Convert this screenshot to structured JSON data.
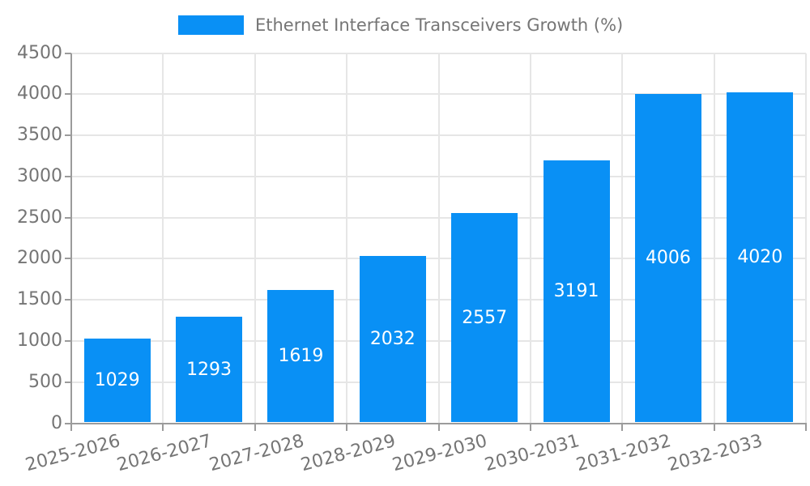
{
  "legend": {
    "label": "Ethernet Interface Transceivers Growth (%)"
  },
  "chart_data": {
    "type": "bar",
    "title": "Ethernet Interface Transceivers Growth (%)",
    "xlabel": "",
    "ylabel": "",
    "categories": [
      "2025-2026",
      "2026-2027",
      "2027-2028",
      "2028-2029",
      "2029-2030",
      "2030-2031",
      "2031-2032",
      "2032-2033"
    ],
    "values": [
      1029,
      1293,
      1619,
      2032,
      2557,
      3191,
      4006,
      4020
    ],
    "value_labels": [
      "1029",
      "1293",
      "1619",
      "2032",
      "2557",
      "3191",
      "4006",
      "4020"
    ],
    "ylim": [
      0,
      4500
    ],
    "yticks": [
      0,
      500,
      1000,
      1500,
      2000,
      2500,
      3000,
      3500,
      4000,
      4500
    ],
    "grid": true,
    "legend_position": "top-center",
    "colors": {
      "bar": "#0990F5",
      "grid": "#e6e6e6",
      "axis": "#9b9b9b",
      "tick_label": "#757575",
      "value_label": "#ffffff",
      "legend_text": "#757575"
    }
  }
}
